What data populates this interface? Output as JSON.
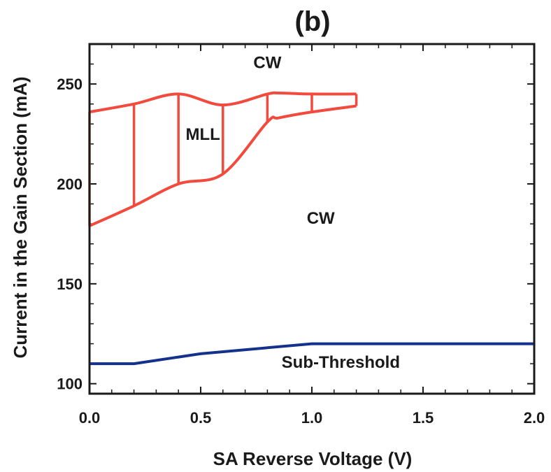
{
  "chart_data": {
    "type": "line",
    "title": "(b)",
    "xlabel": "SA Reverse Voltage (V)",
    "ylabel": "Current in the Gain Section (mA)",
    "xlim": [
      0,
      2.0
    ],
    "ylim": [
      95,
      270
    ],
    "x_ticks": [
      0.0,
      0.5,
      1.0,
      1.5,
      2.0
    ],
    "x_tick_labels": [
      "0.0",
      "0.5",
      "1.0",
      "1.5",
      "2.0"
    ],
    "y_ticks": [
      100,
      150,
      200,
      250
    ],
    "y_tick_labels": [
      "100",
      "150",
      "200",
      "250"
    ],
    "grid": false,
    "mll_region": {
      "color": "#f24a3c",
      "upper": {
        "x": [
          0.0,
          0.2,
          0.4,
          0.6,
          0.8,
          0.85,
          1.0,
          1.2
        ],
        "y": [
          236,
          240,
          245,
          239.5,
          245,
          245.5,
          245,
          245
        ]
      },
      "lower": {
        "x": [
          0.0,
          0.2,
          0.4,
          0.6,
          0.8,
          0.85,
          1.0,
          1.2
        ],
        "y": [
          179,
          189,
          200,
          205,
          231,
          233,
          236,
          239
        ]
      },
      "verticals_x": [
        0.0,
        0.2,
        0.4,
        0.6,
        0.8,
        1.0,
        1.2
      ]
    },
    "threshold_line": {
      "color": "#14328c",
      "x": [
        0.0,
        0.2,
        0.5,
        1.0,
        2.0
      ],
      "y": [
        110,
        110,
        115,
        120,
        120
      ]
    },
    "annotations": [
      {
        "text": "CW",
        "x": 0.8,
        "y": 258
      },
      {
        "text": "MLL",
        "x": 0.51,
        "y": 222
      },
      {
        "text": "CW",
        "x": 1.04,
        "y": 180
      },
      {
        "text": "Sub-Threshold",
        "x": 1.13,
        "y": 108
      }
    ]
  }
}
